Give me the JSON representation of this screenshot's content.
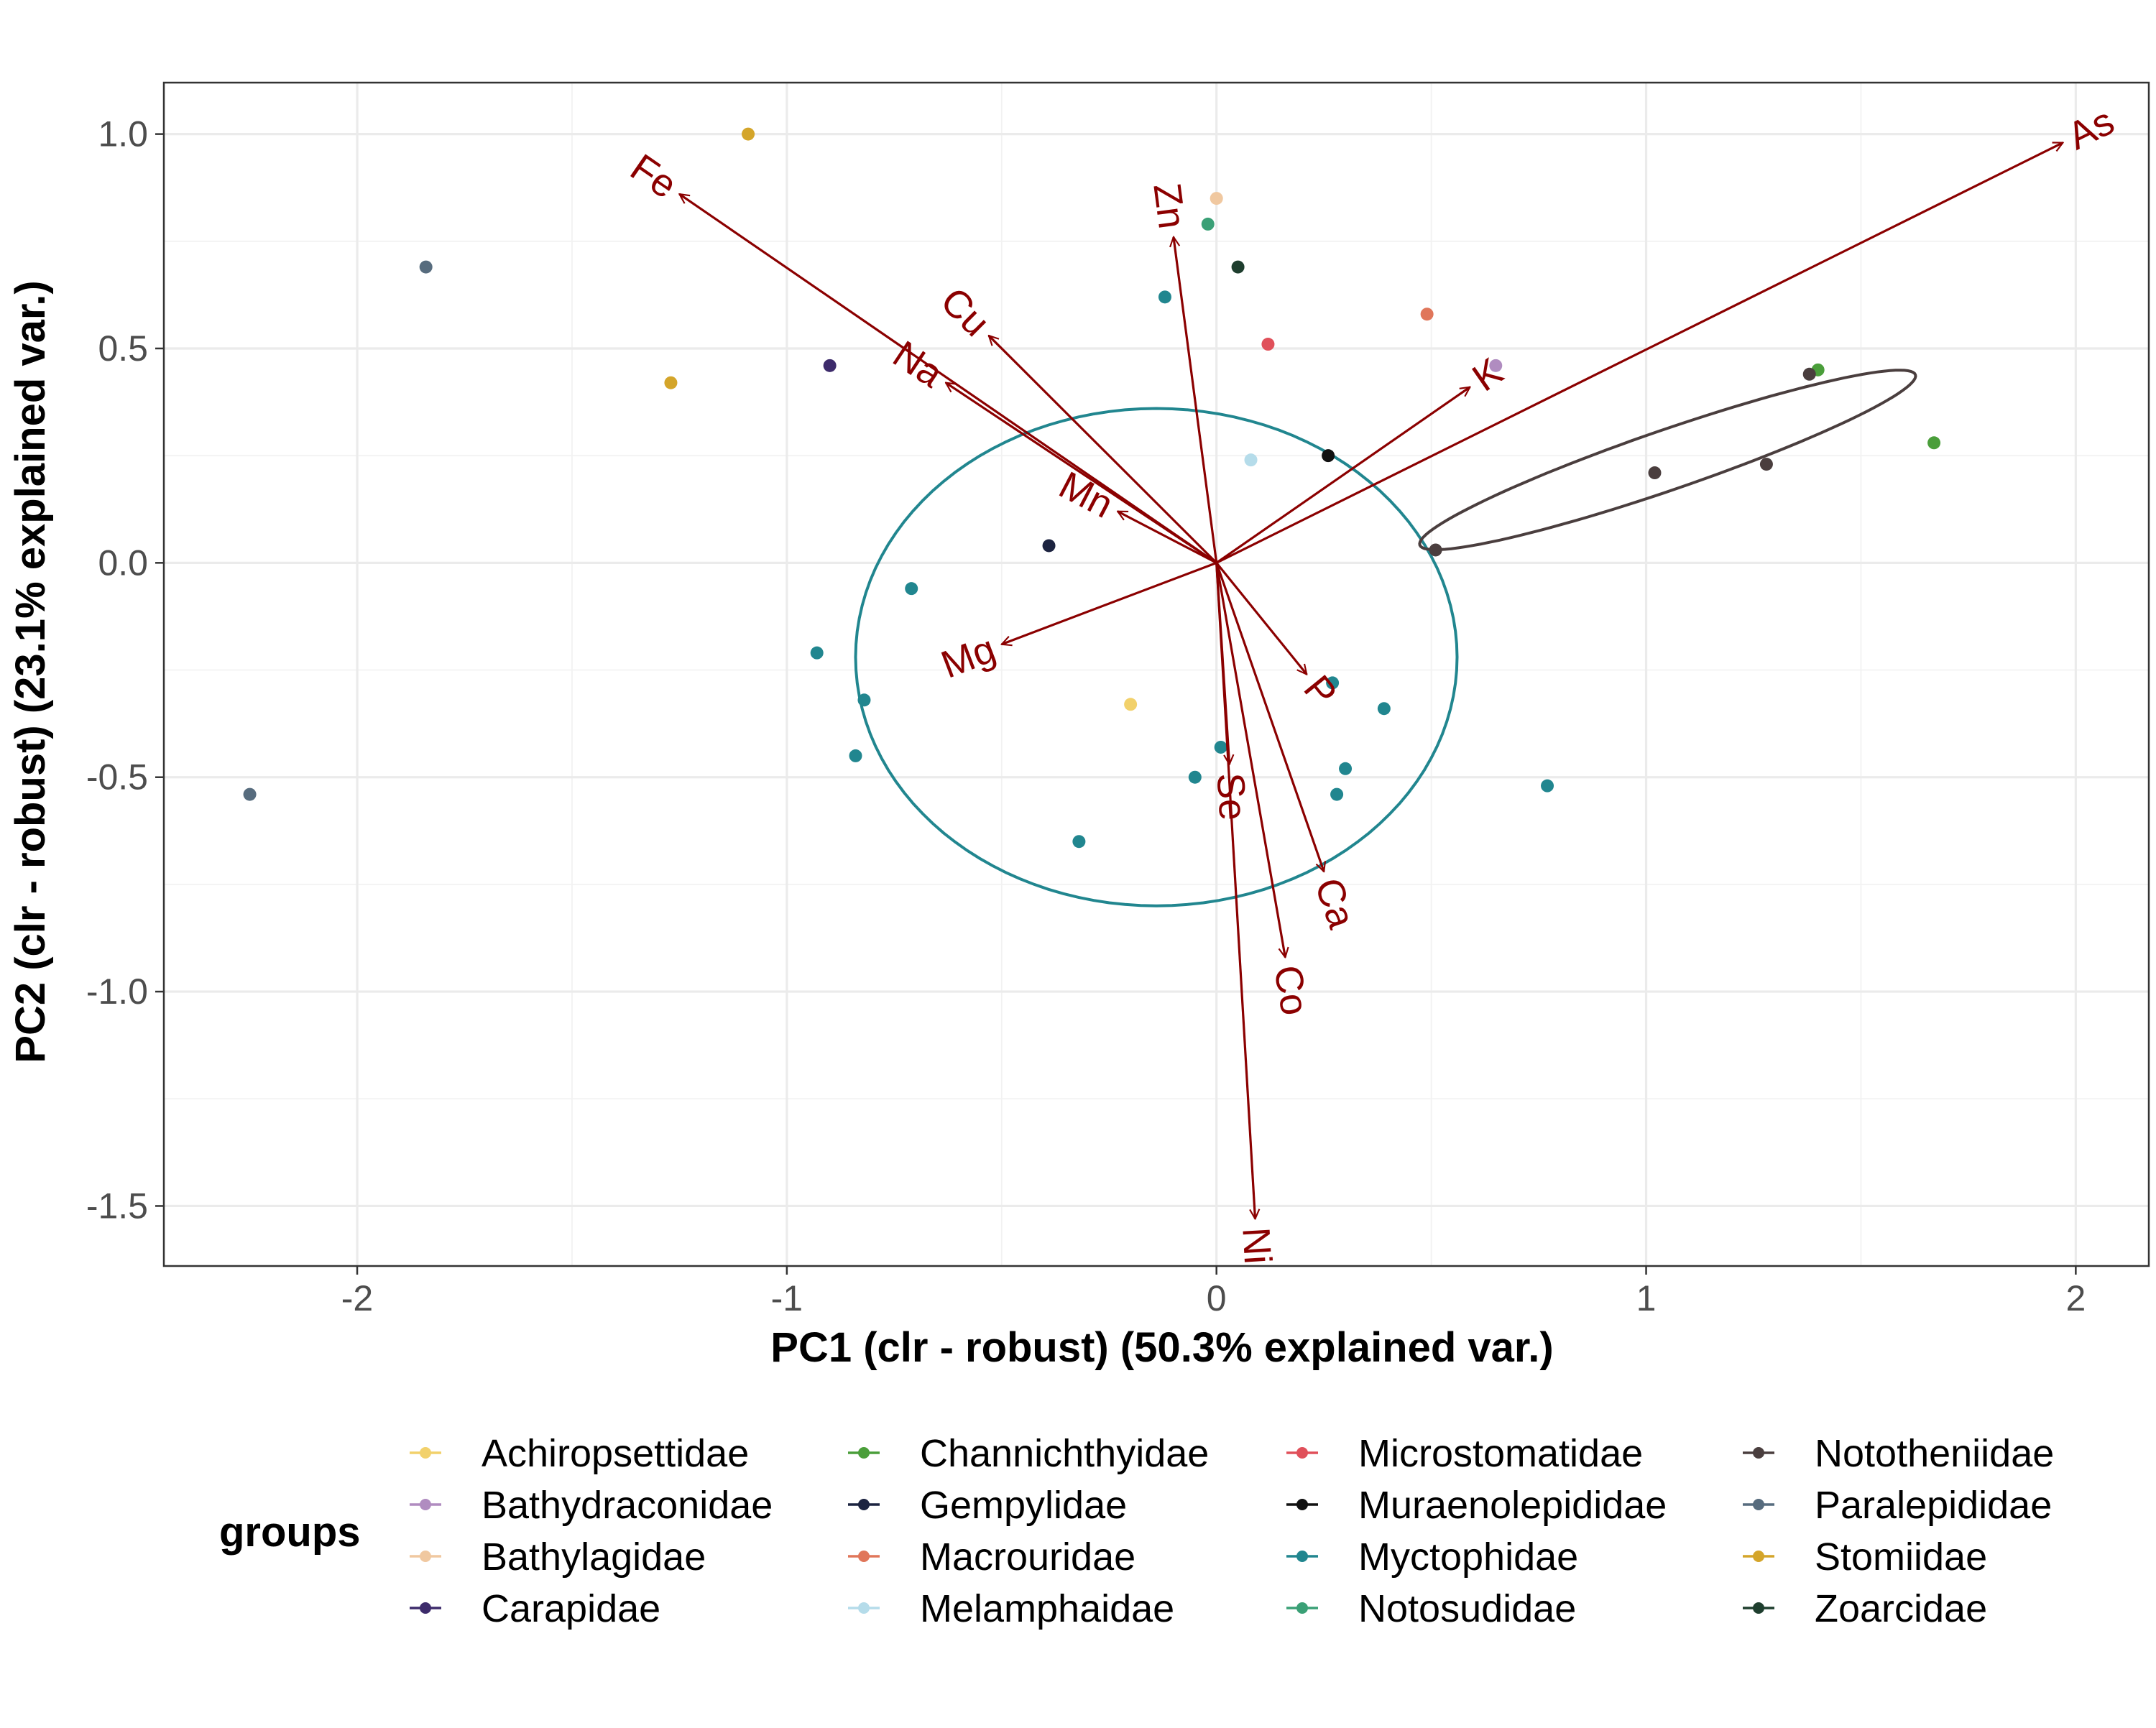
{
  "chart_data": {
    "type": "scatter",
    "subtype": "pca-biplot",
    "xlabel": "PC1 (clr - robust) (50.3% explained var.)",
    "ylabel": "PC2 (clr - robust) (23.1% explained var.)",
    "xlim": [
      -2.45,
      2.17
    ],
    "ylim": [
      -1.64,
      1.12
    ],
    "x_ticks": [
      -2,
      -1,
      0,
      1,
      2
    ],
    "x_tick_labels": [
      "-2",
      "-1",
      "0",
      "1",
      "2"
    ],
    "y_ticks": [
      1.0,
      0.5,
      0.0,
      -0.5,
      -1.0,
      -1.5
    ],
    "y_tick_labels": [
      "1.0",
      "0.5",
      "0.0",
      "-0.5",
      "-1.0",
      "-1.5"
    ],
    "grid": true,
    "legend_title": "groups",
    "legend_position": "bottom",
    "groups": [
      {
        "name": "Achiropsettidae",
        "color": "#f2d16b"
      },
      {
        "name": "Bathydraconidae",
        "color": "#b08cc0"
      },
      {
        "name": "Bathylagidae",
        "color": "#f0c8a0"
      },
      {
        "name": "Carapidae",
        "color": "#3d2b6b"
      },
      {
        "name": "Channichthyidae",
        "color": "#4a9e3a"
      },
      {
        "name": "Gempylidae",
        "color": "#1c2340"
      },
      {
        "name": "Macrouridae",
        "color": "#e0765a"
      },
      {
        "name": "Melamphaidae",
        "color": "#b5dcea"
      },
      {
        "name": "Microstomatidae",
        "color": "#e0505a"
      },
      {
        "name": "Muraenolepididae",
        "color": "#111111"
      },
      {
        "name": "Myctophidae",
        "color": "#21868f"
      },
      {
        "name": "Notosudidae",
        "color": "#3aa076"
      },
      {
        "name": "Nototheniidae",
        "color": "#4a3e3e"
      },
      {
        "name": "Paralepididae",
        "color": "#576c7e"
      },
      {
        "name": "Stomiidae",
        "color": "#d4a52a"
      },
      {
        "name": "Zoarcidae",
        "color": "#1e3e2e"
      }
    ],
    "points": [
      {
        "group": "Achiropsettidae",
        "x": -0.2,
        "y": -0.33
      },
      {
        "group": "Bathydraconidae",
        "x": 0.65,
        "y": 0.46
      },
      {
        "group": "Bathylagidae",
        "x": 0.0,
        "y": 0.85
      },
      {
        "group": "Carapidae",
        "x": -0.9,
        "y": 0.46
      },
      {
        "group": "Channichthyidae",
        "x": 1.4,
        "y": 0.45
      },
      {
        "group": "Channichthyidae",
        "x": 1.67,
        "y": 0.28
      },
      {
        "group": "Gempylidae",
        "x": -0.39,
        "y": 0.04
      },
      {
        "group": "Macrouridae",
        "x": 0.49,
        "y": 0.58
      },
      {
        "group": "Melamphaidae",
        "x": 0.08,
        "y": 0.24
      },
      {
        "group": "Microstomatidae",
        "x": 0.12,
        "y": 0.51
      },
      {
        "group": "Muraenolepididae",
        "x": 0.26,
        "y": 0.25
      },
      {
        "group": "Myctophidae",
        "x": -0.12,
        "y": 0.62
      },
      {
        "group": "Myctophidae",
        "x": -0.71,
        "y": -0.06
      },
      {
        "group": "Myctophidae",
        "x": -0.93,
        "y": -0.21
      },
      {
        "group": "Myctophidae",
        "x": -0.82,
        "y": -0.32
      },
      {
        "group": "Myctophidae",
        "x": -0.84,
        "y": -0.45
      },
      {
        "group": "Myctophidae",
        "x": -0.32,
        "y": -0.65
      },
      {
        "group": "Myctophidae",
        "x": -0.05,
        "y": -0.5
      },
      {
        "group": "Myctophidae",
        "x": 0.01,
        "y": -0.43
      },
      {
        "group": "Myctophidae",
        "x": 0.27,
        "y": -0.28
      },
      {
        "group": "Myctophidae",
        "x": 0.3,
        "y": -0.48
      },
      {
        "group": "Myctophidae",
        "x": 0.28,
        "y": -0.54
      },
      {
        "group": "Myctophidae",
        "x": 0.39,
        "y": -0.34
      },
      {
        "group": "Myctophidae",
        "x": 0.77,
        "y": -0.52
      },
      {
        "group": "Notosudidae",
        "x": -0.02,
        "y": 0.79
      },
      {
        "group": "Nototheniidae",
        "x": 0.51,
        "y": 0.03
      },
      {
        "group": "Nototheniidae",
        "x": 1.02,
        "y": 0.21
      },
      {
        "group": "Nototheniidae",
        "x": 1.28,
        "y": 0.23
      },
      {
        "group": "Nototheniidae",
        "x": 1.38,
        "y": 0.44
      },
      {
        "group": "Paralepididae",
        "x": -1.84,
        "y": 0.69
      },
      {
        "group": "Paralepididae",
        "x": -2.25,
        "y": -0.54
      },
      {
        "group": "Stomiidae",
        "x": -1.09,
        "y": 1.0
      },
      {
        "group": "Stomiidae",
        "x": -1.27,
        "y": 0.42
      },
      {
        "group": "Zoarcidae",
        "x": 0.05,
        "y": 0.69
      }
    ],
    "ellipses": [
      {
        "group": "Myctophidae",
        "color": "#21868f",
        "cx": -0.14,
        "cy": -0.22,
        "rx": 0.7,
        "ry": 0.58,
        "angle_deg": 0
      },
      {
        "group": "Nototheniidae",
        "color": "#4a3e3e",
        "cx": 1.05,
        "cy": 0.24,
        "rx": 0.61,
        "ry": 0.07,
        "angle_deg": 19
      }
    ],
    "loadings": [
      {
        "label": "As",
        "x": 1.97,
        "y": 0.98
      },
      {
        "label": "Fe",
        "x": -1.25,
        "y": 0.86
      },
      {
        "label": "Cu",
        "x": -0.53,
        "y": 0.53
      },
      {
        "label": "Na",
        "x": -0.63,
        "y": 0.42
      },
      {
        "label": "Zn",
        "x": -0.1,
        "y": 0.76
      },
      {
        "label": "K",
        "x": 0.59,
        "y": 0.41
      },
      {
        "label": "Mn",
        "x": -0.23,
        "y": 0.12
      },
      {
        "label": "Mg",
        "x": -0.5,
        "y": -0.19
      },
      {
        "label": "P",
        "x": 0.21,
        "y": -0.26
      },
      {
        "label": "Se",
        "x": 0.03,
        "y": -0.47
      },
      {
        "label": "Ca",
        "x": 0.25,
        "y": -0.72
      },
      {
        "label": "Co",
        "x": 0.16,
        "y": -0.92
      },
      {
        "label": "Ni",
        "x": 0.09,
        "y": -1.53
      }
    ],
    "loading_color": "#8b0000"
  }
}
